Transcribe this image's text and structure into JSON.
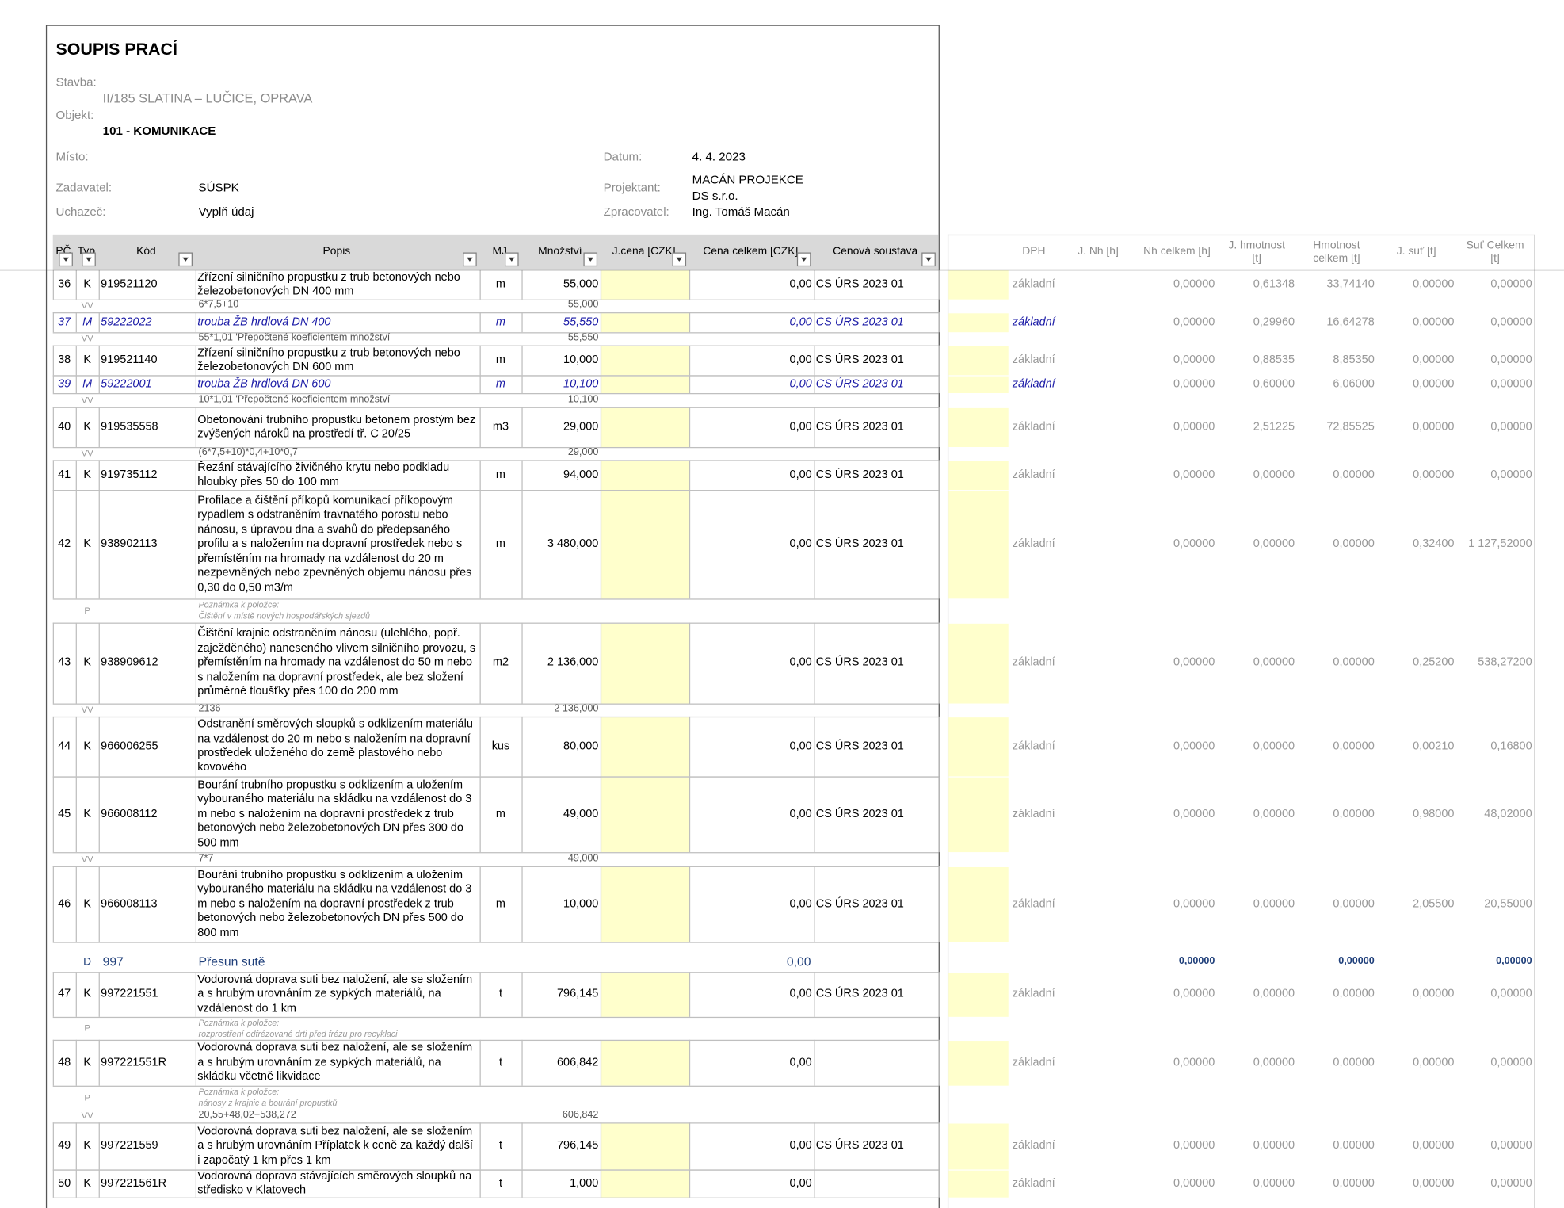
{
  "header": {
    "title": "SOUPIS PRACÍ",
    "stavba_label": "Stavba:",
    "stavba": "II/185 SLATINA – LUČICE, OPRAVA",
    "objekt_label": "Objekt:",
    "objekt": "101 - KOMUNIKACE",
    "misto_label": "Místo:",
    "datum_label": "Datum:",
    "datum": "4. 4. 2023",
    "zadavatel_label": "Zadavatel:",
    "zadavatel": "SÚSPK",
    "projektant_label": "Projektant:",
    "projektant": [
      "MACÁN PROJEKCE",
      "DS s.r.o."
    ],
    "uchazec_label": "Uchazeč:",
    "uchazec": "Vyplň údaj",
    "zpracovatel_label": "Zpracovatel:",
    "zpracovatel": "Ing. Tomáš Macán"
  },
  "table": {
    "columns": [
      "PČ",
      "Typ",
      "Kód",
      "Popis",
      "MJ",
      "Množství",
      "J.cena [CZK]",
      "Cena celkem [CZK]",
      "Cenová soustava"
    ],
    "extra_columns": [
      "DPH",
      "J. Nh [h]",
      "Nh celkem [h]",
      "J. hmotnost [t]",
      "Hmotnost celkem [t]",
      "J. suť [t]",
      "Suť Celkem [t]"
    ],
    "rows": [
      {
        "pc": "36",
        "typ": "K",
        "kod": "919521120",
        "popis": "Zřízení silničního propustku z trub betonových nebo železobetonových DN 400 mm",
        "mj": "m",
        "mnozstvi": "55,000",
        "cena": "0,00",
        "soustava": "CS ÚRS 2023 01",
        "dph": "základní",
        "nh": "0,00000",
        "j_hmotnost": "0,61348",
        "hmotnost": "33,74140",
        "j_sut": "0,00000",
        "sut": "0,00000"
      },
      {
        "typ": "VV",
        "popis": "6*7,5+10",
        "mnozstvi": "55,000"
      },
      {
        "pc": "37",
        "typ": "M",
        "kod": "59222022",
        "popis": "trouba ŽB hrdlová DN 400",
        "mj": "m",
        "mnozstvi": "55,550",
        "cena": "0,00",
        "soustava": "CS ÚRS 2023 01",
        "dph": "základní",
        "nh": "0,00000",
        "j_hmotnost": "0,29960",
        "hmotnost": "16,64278",
        "j_sut": "0,00000",
        "sut": "0,00000"
      },
      {
        "typ": "VV",
        "popis": "55*1,01 'Přepočtené koeficientem množství",
        "mnozstvi": "55,550"
      },
      {
        "pc": "38",
        "typ": "K",
        "kod": "919521140",
        "popis": "Zřízení silničního propustku z trub betonových nebo železobetonových DN 600 mm",
        "mj": "m",
        "mnozstvi": "10,000",
        "cena": "0,00",
        "soustava": "CS ÚRS 2023 01",
        "dph": "základní",
        "nh": "0,00000",
        "j_hmotnost": "0,88535",
        "hmotnost": "8,85350",
        "j_sut": "0,00000",
        "sut": "0,00000"
      },
      {
        "pc": "39",
        "typ": "M",
        "kod": "59222001",
        "popis": "trouba ŽB hrdlová DN 600",
        "mj": "m",
        "mnozstvi": "10,100",
        "cena": "0,00",
        "soustava": "CS ÚRS 2023 01",
        "dph": "základní",
        "nh": "0,00000",
        "j_hmotnost": "0,60000",
        "hmotnost": "6,06000",
        "j_sut": "0,00000",
        "sut": "0,00000"
      },
      {
        "typ": "VV",
        "popis": "10*1,01 'Přepočtené koeficientem množství",
        "mnozstvi": "10,100"
      },
      {
        "pc": "40",
        "typ": "K",
        "kod": "919535558",
        "popis": "Obetonování trubního propustku betonem prostým bez zvýšených nároků na prostředí tř. C 20/25",
        "mj": "m3",
        "mnozstvi": "29,000",
        "cena": "0,00",
        "soustava": "CS ÚRS 2023 01",
        "dph": "základní",
        "nh": "0,00000",
        "j_hmotnost": "2,51225",
        "hmotnost": "72,85525",
        "j_sut": "0,00000",
        "sut": "0,00000"
      },
      {
        "typ": "VV",
        "popis": "(6*7,5+10)*0,4+10*0,7",
        "mnozstvi": "29,000"
      },
      {
        "pc": "41",
        "typ": "K",
        "kod": "919735112",
        "popis": "Řezání stávajícího živičného krytu nebo podkladu hloubky přes 50 do 100 mm",
        "mj": "m",
        "mnozstvi": "94,000",
        "cena": "0,00",
        "soustava": "CS ÚRS 2023 01",
        "dph": "základní",
        "nh": "0,00000",
        "j_hmotnost": "0,00000",
        "hmotnost": "0,00000",
        "j_sut": "0,00000",
        "sut": "0,00000"
      },
      {
        "pc": "42",
        "typ": "K",
        "kod": "938902113",
        "popis": "Profilace a čištění příkopů komunikací příkopovým rypadlem s odstraněním travnatého porostu nebo nánosu, s úpravou dna a svahů do předepsaného profilu a s naložením na dopravní prostředek nebo s přemístěním na hromady na vzdálenost do 20 m nezpevněných nebo zpevněných objemu nánosu přes 0,30 do 0,50 m3/m",
        "mj": "m",
        "mnozstvi": "3 480,000",
        "cena": "0,00",
        "soustava": "CS ÚRS 2023 01",
        "dph": "základní",
        "nh": "0,00000",
        "j_hmotnost": "0,00000",
        "hmotnost": "0,00000",
        "j_sut": "0,32400",
        "sut": "1 127,52000"
      },
      {
        "typ": "P",
        "popis": [
          "Poznámka k položce:",
          "Čištění v místě nových hospodářských sjezdů"
        ]
      },
      {
        "pc": "43",
        "typ": "K",
        "kod": "938909612",
        "popis": "Čištění krajnic odstraněním nánosu (ulehlého, popř. zaježdĕného) naneseného vlivem silničního provozu, s přemístěním na hromady na vzdálenost do 50 m nebo s naložením na dopravní prostředek, ale bez složení průměrné tloušťky přes 100 do 200 mm",
        "mj": "m2",
        "mnozstvi": "2 136,000",
        "cena": "0,00",
        "soustava": "CS ÚRS 2023 01",
        "dph": "základní",
        "nh": "0,00000",
        "j_hmotnost": "0,00000",
        "hmotnost": "0,00000",
        "j_sut": "0,25200",
        "sut": "538,27200"
      },
      {
        "typ": "VV",
        "popis": "2136",
        "mnozstvi": "2 136,000"
      },
      {
        "pc": "44",
        "typ": "K",
        "kod": "966006255",
        "popis": "Odstranění směrových sloupků s odklizením materiálu na vzdálenost do 20 m nebo s naložením na dopravní prostředek uloženého do země plastového nebo kovového",
        "mj": "kus",
        "mnozstvi": "80,000",
        "cena": "0,00",
        "soustava": "CS ÚRS 2023 01",
        "dph": "základní",
        "nh": "0,00000",
        "j_hmotnost": "0,00000",
        "hmotnost": "0,00000",
        "j_sut": "0,00210",
        "sut": "0,16800"
      },
      {
        "pc": "45",
        "typ": "K",
        "kod": "966008112",
        "popis": "Bourání trubního propustku s odklizením a uložením vybouraného materiálu na skládku na vzdálenost do 3 m nebo s naložením na dopravní prostředek z trub betonových nebo železobetonových DN přes 300 do 500 mm",
        "mj": "m",
        "mnozstvi": "49,000",
        "cena": "0,00",
        "soustava": "CS ÚRS 2023 01",
        "dph": "základní",
        "nh": "0,00000",
        "j_hmotnost": "0,00000",
        "hmotnost": "0,00000",
        "j_sut": "0,98000",
        "sut": "48,02000"
      },
      {
        "typ": "VV",
        "popis": "7*7",
        "mnozstvi": "49,000"
      },
      {
        "pc": "46",
        "typ": "K",
        "kod": "966008113",
        "popis": "Bourání trubního propustku s odklizením a uložením vybouraného materiálu na skládku na vzdálenost do 3 m nebo s naložením na dopravní prostředek z trub betonových nebo železobetonových DN přes 500 do 800 mm",
        "mj": "m",
        "mnozstvi": "10,000",
        "cena": "0,00",
        "soustava": "CS ÚRS 2023 01",
        "dph": "základní",
        "nh": "0,00000",
        "j_hmotnost": "0,00000",
        "hmotnost": "0,00000",
        "j_sut": "2,05500",
        "sut": "20,55000"
      },
      {
        "typ": "D",
        "kod": "997",
        "popis": "Přesun sutě",
        "cena": "0,00",
        "nh": "0,00000",
        "hmotnost": "0,00000",
        "sut": "0,00000"
      },
      {
        "pc": "47",
        "typ": "K",
        "kod": "997221551",
        "popis": "Vodorovná doprava suti bez naložení, ale se složením a s hrubým urovnáním ze sypkých materiálů, na vzdálenost do 1 km",
        "mj": "t",
        "mnozstvi": "796,145",
        "cena": "0,00",
        "soustava": "CS ÚRS 2023 01",
        "dph": "základní",
        "nh": "0,00000",
        "j_hmotnost": "0,00000",
        "hmotnost": "0,00000",
        "j_sut": "0,00000",
        "sut": "0,00000"
      },
      {
        "typ": "P",
        "popis": [
          "Poznámka k položce:",
          "rozprostření odfrézované drti před frézu pro recyklaci"
        ]
      },
      {
        "pc": "48",
        "typ": "K",
        "kod": "997221551R",
        "popis": "Vodorovná doprava suti bez naložení, ale se složením a s hrubým urovnáním ze sypkých materiálů, na skládku včetně likvidace",
        "mj": "t",
        "mnozstvi": "606,842",
        "cena": "0,00",
        "dph": "základní",
        "nh": "0,00000",
        "j_hmotnost": "0,00000",
        "hmotnost": "0,00000",
        "j_sut": "0,00000",
        "sut": "0,00000"
      },
      {
        "typ": "P",
        "popis": [
          "Poznámka k položce:",
          "nánosy z krajnic a bourání propustků"
        ]
      },
      {
        "typ": "VV",
        "popis": "20,55+48,02+538,272",
        "mnozstvi": "606,842"
      },
      {
        "pc": "49",
        "typ": "K",
        "kod": "997221559",
        "popis": "Vodorovná doprava suti bez naložení, ale se složením a s hrubým urovnáním Příplatek k ceně za každý další i započatý 1 km přes 1 km",
        "mj": "t",
        "mnozstvi": "796,145",
        "cena": "0,00",
        "soustava": "CS ÚRS 2023 01",
        "dph": "základní",
        "nh": "0,00000",
        "j_hmotnost": "0,00000",
        "hmotnost": "0,00000",
        "j_sut": "0,00000",
        "sut": "0,00000"
      },
      {
        "pc": "50",
        "typ": "K",
        "kod": "997221561R",
        "popis": "Vodorovná doprava stávajících směrových sloupků na středisko v Klatovech",
        "mj": "t",
        "mnozstvi": "1,000",
        "cena": "0,00",
        "dph": "základní",
        "nh": "0,00000",
        "j_hmotnost": "0,00000",
        "hmotnost": "0,00000",
        "j_sut": "0,00000",
        "sut": "0,00000"
      }
    ]
  }
}
